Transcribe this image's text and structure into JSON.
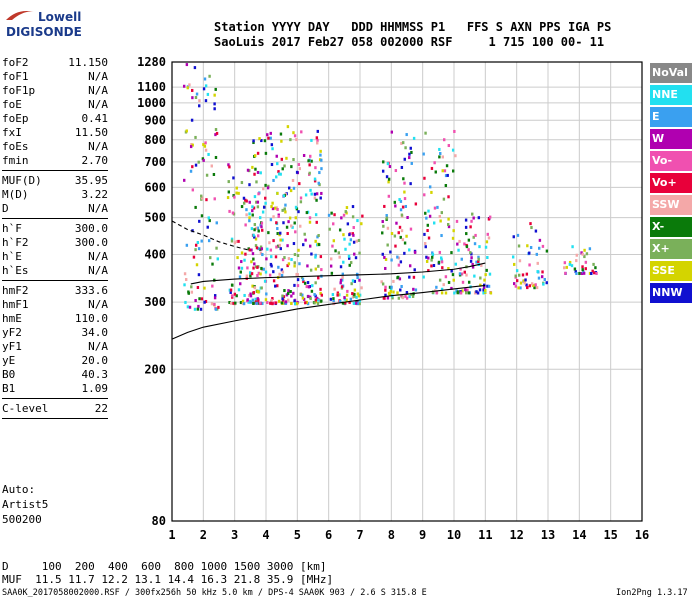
{
  "logo": {
    "line1": "Lowell",
    "line2": "DIGISONDE"
  },
  "header": {
    "line1": "Station YYYY DAY   DDD HHMMSS P1   FFS S AXN PPS IGA PS",
    "line2": "SaoLuis 2017 Feb27 058 002000 RSF     1 715 100 00- 11"
  },
  "params": {
    "group1": [
      {
        "label": "foF2",
        "value": "11.150"
      },
      {
        "label": "foF1",
        "value": "N/A"
      },
      {
        "label": "foF1p",
        "value": "N/A"
      },
      {
        "label": "foE",
        "value": "N/A"
      },
      {
        "label": "foEp",
        "value": "0.41"
      },
      {
        "label": "fxI",
        "value": "11.50"
      },
      {
        "label": "foEs",
        "value": "N/A"
      },
      {
        "label": "fmin",
        "value": "2.70"
      }
    ],
    "group2": [
      {
        "label": "MUF(D)",
        "value": "35.95"
      },
      {
        "label": "M(D)",
        "value": "3.22"
      },
      {
        "label": "D",
        "value": "N/A"
      }
    ],
    "group3": [
      {
        "label": "h`F",
        "value": "300.0"
      },
      {
        "label": "h`F2",
        "value": "300.0"
      },
      {
        "label": "h`E",
        "value": "N/A"
      },
      {
        "label": "h`Es",
        "value": "N/A"
      }
    ],
    "group4": [
      {
        "label": "hmF2",
        "value": "333.6"
      },
      {
        "label": "hmF1",
        "value": "N/A"
      },
      {
        "label": "hmE",
        "value": "110.0"
      },
      {
        "label": "yF2",
        "value": "34.0"
      },
      {
        "label": "yF1",
        "value": "N/A"
      },
      {
        "label": "yE",
        "value": "20.0"
      },
      {
        "label": "B0",
        "value": "40.3"
      },
      {
        "label": "B1",
        "value": "1.09"
      }
    ],
    "group5": [
      {
        "label": "C-level",
        "value": "22"
      }
    ]
  },
  "auto": {
    "line1": "Auto:",
    "line2": "Artist5",
    "line3": "500200"
  },
  "bottom": {
    "d_line": "D     100  200  400  600  800 1000 1500 3000 [km]",
    "muf_line": "MUF  11.5 11.7 12.2 13.1 14.4 16.3 21.8 35.9 [MHz]",
    "info_line": "SAA0K_2017058002000.RSF / 300fx256h 50 kHz 5.0 km / DPS-4 SAA0K 903 / 2.6 S 315.8 E",
    "version": "Ion2Png 1.3.17"
  },
  "legend": [
    {
      "label": "NoVal",
      "color": "#888888"
    },
    {
      "label": "NNE",
      "color": "#22e0f0"
    },
    {
      "label": "E",
      "color": "#3aa0f0"
    },
    {
      "label": "W",
      "color": "#b000b0"
    },
    {
      "label": "Vo-",
      "color": "#f050b0"
    },
    {
      "label": "Vo+",
      "color": "#e8003a"
    },
    {
      "label": "SSW",
      "color": "#f4a8a8"
    },
    {
      "label": "X-",
      "color": "#0a7a0a"
    },
    {
      "label": "X+",
      "color": "#7ab05a"
    },
    {
      "label": "SSE",
      "color": "#d4d400"
    },
    {
      "label": "NNW",
      "color": "#1010d0"
    }
  ],
  "chart_data": {
    "type": "scatter",
    "x_ticks": [
      1,
      2,
      3,
      4,
      5,
      6,
      7,
      8,
      9,
      10,
      11,
      12,
      13,
      14,
      15,
      16
    ],
    "y_ticks": [
      80,
      200,
      300,
      400,
      500,
      600,
      700,
      800,
      900,
      1000,
      1100,
      1280
    ],
    "xlim": [
      1,
      16
    ],
    "ylim": [
      80,
      1280
    ],
    "y_scale": "log",
    "grid": true,
    "traces": [
      {
        "name": "",
        "x": [
          1.0,
          1.5,
          2.0,
          3.0,
          4.0,
          5.0,
          6.0,
          7.0,
          8.0,
          9.0,
          10.0,
          11.0
        ],
        "y": [
          240,
          250,
          258,
          268,
          278,
          288,
          296,
          304,
          312,
          318,
          325,
          332
        ]
      },
      {
        "name": "",
        "x": [
          1.0,
          1.5,
          2.0,
          2.5,
          3.0,
          3.5
        ],
        "y": [
          490,
          465,
          450,
          432,
          420,
          410
        ]
      },
      {
        "name": "",
        "x": [
          1.6,
          2.0,
          3.0,
          4.0,
          5.0,
          6.0,
          7.0,
          8.0,
          9.0,
          10.0,
          10.5,
          11.0
        ],
        "y": [
          335,
          340,
          345,
          348,
          350,
          352,
          354,
          356,
          360,
          366,
          372,
          380
        ]
      }
    ],
    "clusters": [
      {
        "x_center": 1.9,
        "y_min": 290,
        "y_max": 1280,
        "density": 1.2
      },
      {
        "x_center": 3.3,
        "y_min": 300,
        "y_max": 700,
        "density": 1.5
      },
      {
        "x_center": 4.1,
        "y_min": 300,
        "y_max": 850,
        "density": 1.8
      },
      {
        "x_center": 5.2,
        "y_min": 300,
        "y_max": 900,
        "density": 1.8
      },
      {
        "x_center": 6.5,
        "y_min": 300,
        "y_max": 550,
        "density": 1.2
      },
      {
        "x_center": 8.2,
        "y_min": 310,
        "y_max": 850,
        "density": 1.3
      },
      {
        "x_center": 9.5,
        "y_min": 320,
        "y_max": 850,
        "density": 1.0
      },
      {
        "x_center": 10.6,
        "y_min": 320,
        "y_max": 520,
        "density": 1.0
      },
      {
        "x_center": 12.4,
        "y_min": 330,
        "y_max": 500,
        "density": 0.6
      },
      {
        "x_center": 14.0,
        "y_min": 360,
        "y_max": 430,
        "density": 0.4
      }
    ]
  }
}
